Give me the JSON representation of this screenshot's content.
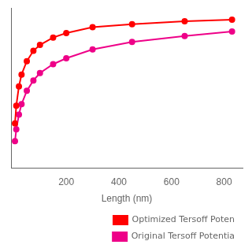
{
  "chart_data": {
    "type": "line",
    "x": [
      5,
      10,
      20,
      30,
      50,
      75,
      100,
      150,
      200,
      300,
      450,
      650,
      830
    ],
    "series": [
      {
        "name": "Optimized Tersoff Poten",
        "color": "#ff0000",
        "marker": "circle",
        "values": [
          0.3,
          0.42,
          0.55,
          0.63,
          0.72,
          0.79,
          0.83,
          0.88,
          0.91,
          0.95,
          0.97,
          0.99,
          1.0
        ]
      },
      {
        "name": "Original Tersoff Potentia",
        "color": "#ee0088",
        "marker": "circle",
        "values": [
          0.18,
          0.26,
          0.36,
          0.43,
          0.52,
          0.59,
          0.64,
          0.7,
          0.74,
          0.8,
          0.85,
          0.89,
          0.92
        ]
      }
    ],
    "xlabel": "Length (nm)",
    "xlim": [
      -10,
      870
    ],
    "xticks": [
      200,
      400,
      600,
      800
    ],
    "ylim": [
      0.0,
      1.08
    ],
    "tick_labels": "x",
    "grid": false,
    "legend": "lower right"
  }
}
